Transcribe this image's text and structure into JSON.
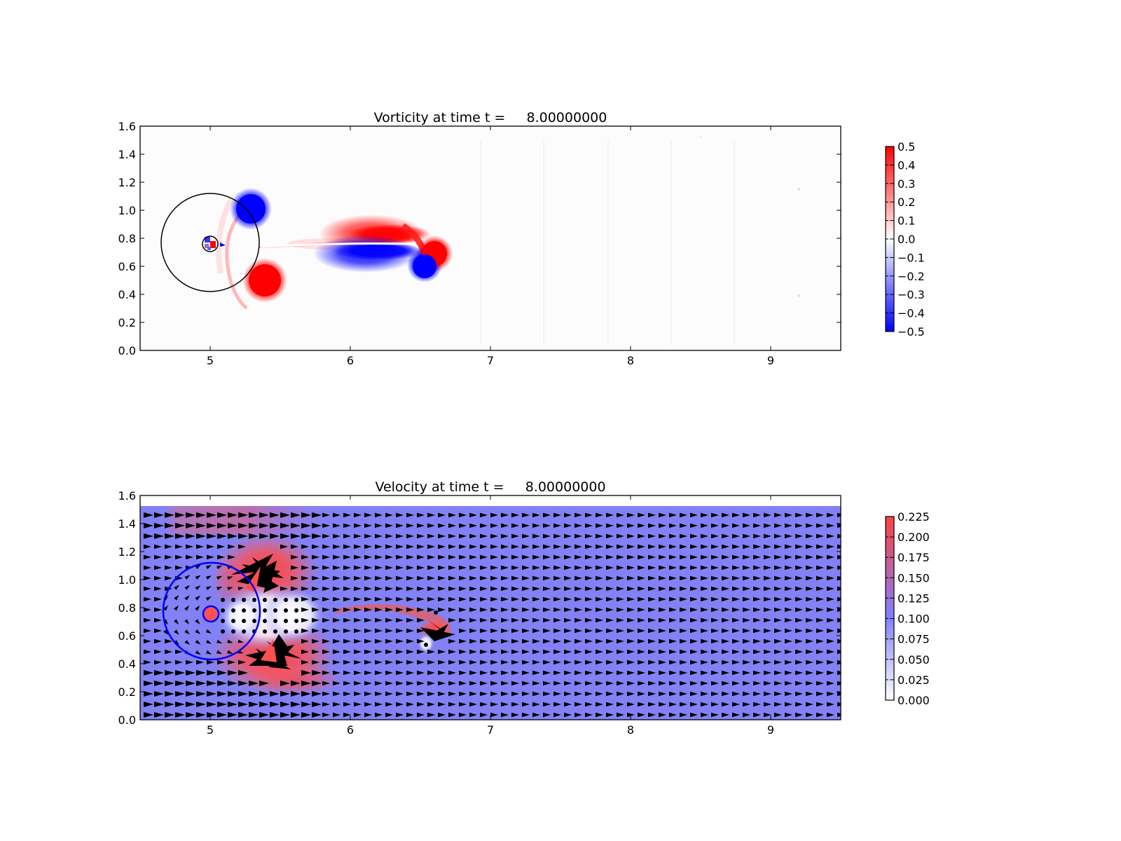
{
  "figure": {
    "background": "#ffffff"
  },
  "chart_data": [
    {
      "type": "heatmap",
      "title": "Vorticity at time t =     8.00000000",
      "xlabel": "",
      "ylabel": "",
      "xlim": [
        4.5,
        9.5
      ],
      "ylim": [
        0.0,
        1.6
      ],
      "xticks": [
        "5",
        "6",
        "7",
        "8",
        "9"
      ],
      "yticks": [
        "0.0",
        "0.2",
        "0.4",
        "0.6",
        "0.8",
        "1.0",
        "1.2",
        "1.4",
        "1.6"
      ],
      "grid": false,
      "colormap": "bwr",
      "colormap_colors": [
        "#0000ff",
        "#ffffff",
        "#ff0000"
      ],
      "colorbar": {
        "range": [
          -0.5,
          0.5
        ],
        "tick_values": [
          0.5,
          0.4,
          0.3,
          0.2,
          0.1,
          0.0,
          -0.1,
          -0.2,
          -0.3,
          -0.4,
          -0.5
        ],
        "tick_labels": [
          "0.5",
          "0.4",
          "0.3",
          "0.2",
          "0.1",
          "0.0",
          "−0.1",
          "−0.2",
          "−0.3",
          "−0.4",
          "−0.5"
        ]
      },
      "circles": [
        {
          "name": "outer-ring",
          "cx": 5.0,
          "cy": 0.75,
          "r": 0.35,
          "color": "#000000"
        },
        {
          "name": "body",
          "cx": 5.0,
          "cy": 0.75,
          "r": 0.055,
          "color": "#000000"
        }
      ],
      "vortices": [
        {
          "x": 5.28,
          "y": 0.98,
          "strength": -0.5
        },
        {
          "x": 5.38,
          "y": 0.5,
          "strength": 0.5
        },
        {
          "x": 6.58,
          "y": 0.68,
          "strength": 0.5
        },
        {
          "x": 6.5,
          "y": 0.6,
          "strength": -0.5
        },
        {
          "x": 6.1,
          "y": 0.8,
          "strength": 0.45
        },
        {
          "x": 6.05,
          "y": 0.68,
          "strength": -0.45
        }
      ]
    },
    {
      "type": "heatmap",
      "title": "Velocity at time t =     8.00000000",
      "xlabel": "",
      "ylabel": "",
      "xlim": [
        4.5,
        9.5
      ],
      "ylim": [
        0.0,
        1.6
      ],
      "xticks": [
        "5",
        "6",
        "7",
        "8",
        "9"
      ],
      "yticks": [
        "0.0",
        "0.2",
        "0.4",
        "0.6",
        "0.8",
        "1.0",
        "1.2",
        "1.4",
        "1.6"
      ],
      "grid": false,
      "field_extent_y": [
        0.0,
        1.52
      ],
      "colormap": "bwr (upper half)",
      "colormap_colors": [
        "#ffffff",
        "#8080ff",
        "#ff4040"
      ],
      "colorbar": {
        "range": [
          0.0,
          0.225
        ],
        "tick_values": [
          0.225,
          0.2,
          0.175,
          0.15,
          0.125,
          0.1,
          0.075,
          0.05,
          0.025,
          0.0
        ],
        "tick_labels": [
          "0.225",
          "0.200",
          "0.175",
          "0.150",
          "0.125",
          "0.100",
          "0.075",
          "0.050",
          "0.025",
          "0.000"
        ]
      },
      "background_speed": 0.1,
      "circles": [
        {
          "name": "outer-ring",
          "cx": 5.0,
          "cy": 0.75,
          "r": 0.35,
          "color": "#0000ff"
        },
        {
          "name": "body",
          "cx": 5.0,
          "cy": 0.75,
          "r": 0.055,
          "color": "#0000ff"
        }
      ],
      "vectors": "quiver arrows, uniform flow in +x direction"
    }
  ]
}
